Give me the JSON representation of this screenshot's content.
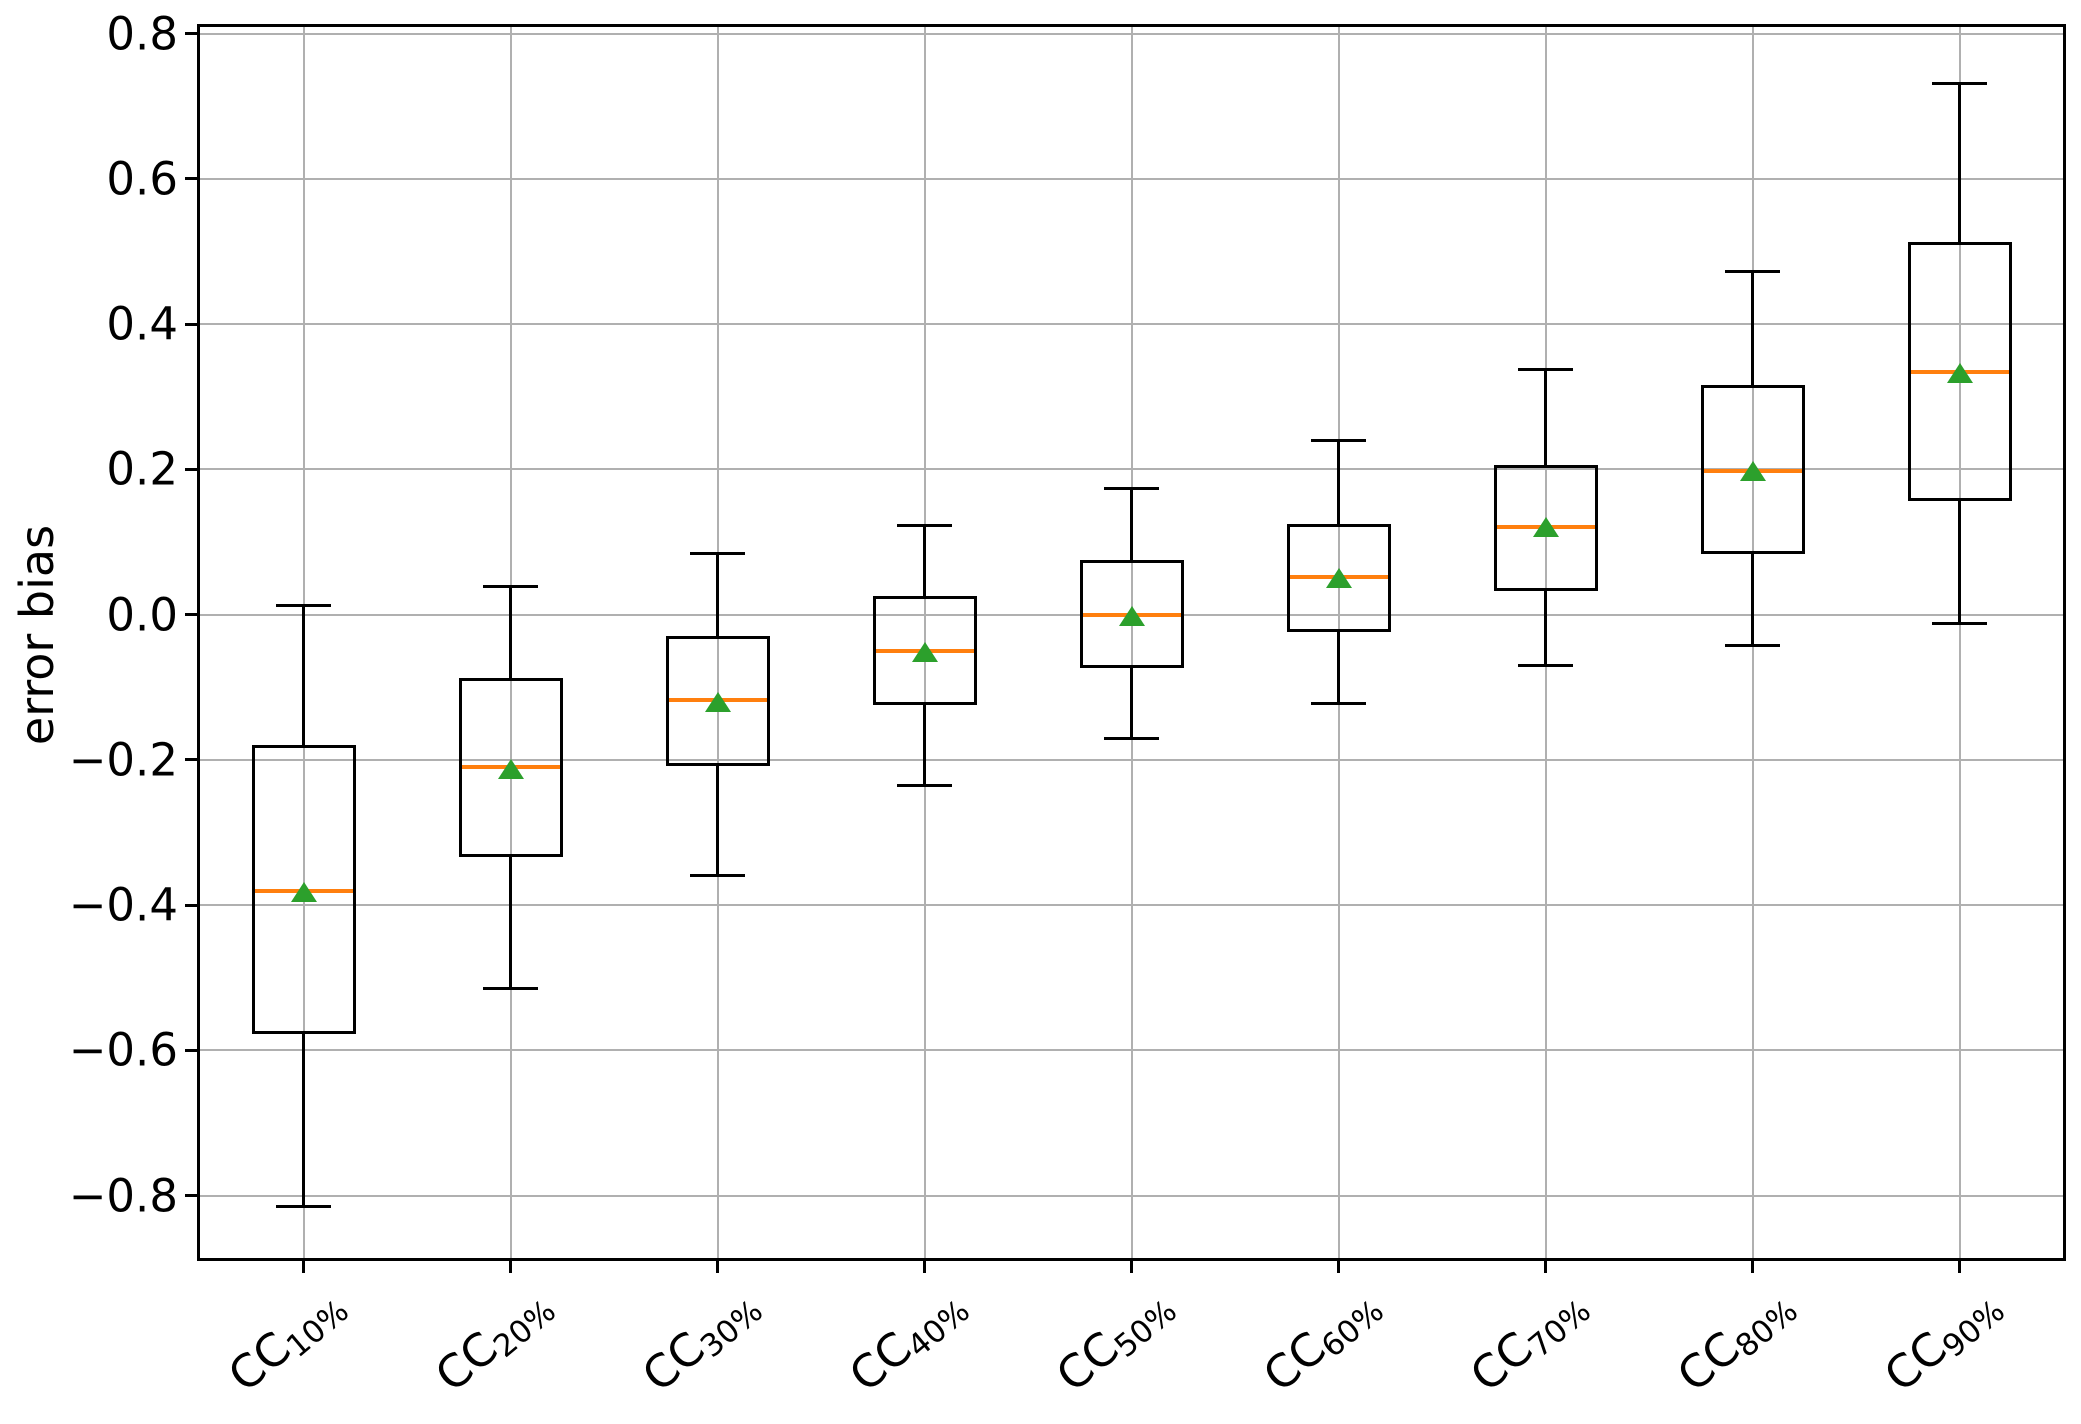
{
  "chart_data": {
    "type": "boxplot",
    "title": "",
    "xlabel": "",
    "ylabel": "error bias",
    "ylim": [
      -0.886,
      0.809
    ],
    "grid": true,
    "legend": "none",
    "yticks": [
      0.8,
      0.6,
      0.4,
      0.2,
      0.0,
      -0.2,
      -0.4,
      -0.6,
      -0.8
    ],
    "ytick_labels": [
      "0.8",
      "0.6",
      "0.4",
      "0.2",
      "0.0",
      "−0.2",
      "−0.4",
      "−0.6",
      "−0.8"
    ],
    "categories": [
      {
        "main": "CC",
        "sub": "10%"
      },
      {
        "main": "CC",
        "sub": "20%"
      },
      {
        "main": "CC",
        "sub": "30%"
      },
      {
        "main": "CC",
        "sub": "40%"
      },
      {
        "main": "CC",
        "sub": "50%"
      },
      {
        "main": "CC",
        "sub": "60%"
      },
      {
        "main": "CC",
        "sub": "70%"
      },
      {
        "main": "CC",
        "sub": "80%"
      },
      {
        "main": "CC",
        "sub": "90%"
      }
    ],
    "boxes": [
      {
        "whislo": -0.815,
        "q1": -0.578,
        "med": -0.38,
        "mean": -0.382,
        "q3": -0.18,
        "whishi": 0.012
      },
      {
        "whislo": -0.515,
        "q1": -0.334,
        "med": -0.21,
        "mean": -0.212,
        "q3": -0.088,
        "whishi": 0.038
      },
      {
        "whislo": -0.359,
        "q1": -0.208,
        "med": -0.118,
        "mean": -0.12,
        "q3": -0.03,
        "whishi": 0.084
      },
      {
        "whislo": -0.236,
        "q1": -0.124,
        "med": -0.05,
        "mean": -0.051,
        "q3": 0.025,
        "whishi": 0.123
      },
      {
        "whislo": -0.171,
        "q1": -0.073,
        "med": 0.0,
        "mean": -0.002,
        "q3": 0.075,
        "whishi": 0.174
      },
      {
        "whislo": -0.123,
        "q1": -0.024,
        "med": 0.052,
        "mean": 0.05,
        "q3": 0.124,
        "whishi": 0.239
      },
      {
        "whislo": -0.07,
        "q1": 0.033,
        "med": 0.12,
        "mean": 0.12,
        "q3": 0.206,
        "whishi": 0.337
      },
      {
        "whislo": -0.042,
        "q1": 0.083,
        "med": 0.197,
        "mean": 0.197,
        "q3": 0.316,
        "whishi": 0.472
      },
      {
        "whislo": -0.013,
        "q1": 0.157,
        "med": 0.334,
        "mean": 0.333,
        "q3": 0.513,
        "whishi": 0.731
      }
    ],
    "colors": {
      "box_line": "#000000",
      "whisker": "#000000",
      "median": "#ff7f0e",
      "mean_marker": "#2ca02c",
      "grid": "#b0b0b0",
      "background": "#ffffff"
    }
  }
}
